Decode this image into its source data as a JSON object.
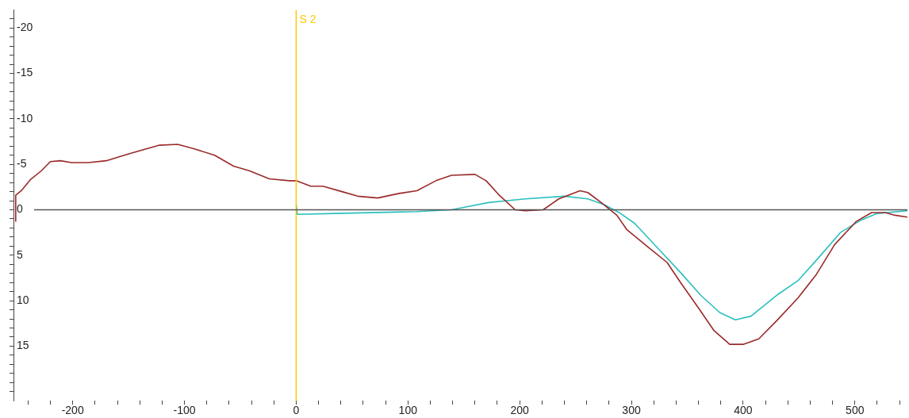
{
  "chart_data": {
    "type": "line",
    "marker": "none",
    "line_style": "solid",
    "grid": false,
    "legend": false,
    "xlim": [
      -253,
      547
    ],
    "ylim": [
      21,
      -22
    ],
    "xticks": [
      -200,
      -100,
      0,
      100,
      200,
      300,
      400,
      500,
      {
        "value": -240,
        "label": null
      },
      {
        "value": -220,
        "label": null
      },
      {
        "value": -180,
        "label": null
      },
      {
        "value": -160,
        "label": null
      },
      {
        "value": -140,
        "label": null
      },
      {
        "value": -120,
        "label": null
      },
      {
        "value": -80,
        "label": null
      },
      {
        "value": -60,
        "label": null
      },
      {
        "value": -40,
        "label": null
      },
      {
        "value": -20,
        "label": null
      },
      {
        "value": 20,
        "label": null
      },
      {
        "value": 40,
        "label": null
      },
      {
        "value": 60,
        "label": null
      },
      {
        "value": 80,
        "label": null
      },
      {
        "value": 120,
        "label": null
      },
      {
        "value": 140,
        "label": null
      },
      {
        "value": 160,
        "label": null
      },
      {
        "value": 180,
        "label": null
      },
      {
        "value": 220,
        "label": null
      },
      {
        "value": 240,
        "label": null
      },
      {
        "value": 260,
        "label": null
      },
      {
        "value": 280,
        "label": null
      },
      {
        "value": 320,
        "label": null
      },
      {
        "value": 340,
        "label": null
      },
      {
        "value": 360,
        "label": null
      },
      {
        "value": 380,
        "label": null
      },
      {
        "value": 420,
        "label": null
      },
      {
        "value": 440,
        "label": null
      },
      {
        "value": 460,
        "label": null
      },
      {
        "value": 480,
        "label": null
      },
      {
        "value": 520,
        "label": null
      },
      {
        "value": 540,
        "label": null
      }
    ],
    "yticks": [
      -20,
      -15,
      -10,
      -5,
      0,
      5,
      10,
      15,
      {
        "value": -21,
        "label": null
      },
      {
        "value": -19,
        "label": null
      },
      {
        "value": -18,
        "label": null
      },
      {
        "value": -17,
        "label": null
      },
      {
        "value": -16,
        "label": null
      },
      {
        "value": -14,
        "label": null
      },
      {
        "value": -13,
        "label": null
      },
      {
        "value": -12,
        "label": null
      },
      {
        "value": -11,
        "label": null
      },
      {
        "value": -9,
        "label": null
      },
      {
        "value": -8,
        "label": null
      },
      {
        "value": -7,
        "label": null
      },
      {
        "value": -6,
        "label": null
      },
      {
        "value": -4,
        "label": null
      },
      {
        "value": -3,
        "label": null
      },
      {
        "value": -2,
        "label": null
      },
      {
        "value": -1,
        "label": null
      },
      {
        "value": 1,
        "label": null
      },
      {
        "value": 2,
        "label": null
      },
      {
        "value": 3,
        "label": null
      },
      {
        "value": 4,
        "label": null
      },
      {
        "value": 6,
        "label": null
      },
      {
        "value": 7,
        "label": null
      },
      {
        "value": 8,
        "label": null
      },
      {
        "value": 9,
        "label": null
      },
      {
        "value": 11,
        "label": null
      },
      {
        "value": 12,
        "label": null
      },
      {
        "value": 13,
        "label": null
      },
      {
        "value": 14,
        "label": null
      },
      {
        "value": 16,
        "label": null
      },
      {
        "value": 17,
        "label": null
      },
      {
        "value": 18,
        "label": null
      },
      {
        "value": 19,
        "label": null
      },
      {
        "value": 20,
        "label": null
      }
    ],
    "ref_lines": [
      {
        "axis": "x",
        "value": 0,
        "label": "S 2",
        "color": "#ffc800"
      },
      {
        "axis": "y",
        "value": 0,
        "color": "#555555"
      }
    ],
    "series": [
      {
        "color": "#9b2a2a",
        "x": [
          -251,
          -251,
          -246,
          -238,
          -228,
          -220,
          -211,
          -201,
          -186,
          -170,
          -154,
          -140,
          -123,
          -106,
          -91,
          -73,
          -56,
          -42,
          -24,
          -6,
          0,
          13,
          24,
          41,
          55,
          73,
          92,
          108,
          125,
          139,
          160,
          170,
          181,
          196,
          205,
          221,
          235,
          254,
          261,
          273,
          287,
          296,
          315,
          332,
          344,
          360,
          374,
          388,
          400,
          414,
          430,
          449,
          465,
          482,
          501,
          515,
          527,
          536,
          547
        ],
        "values": [
          1.3,
          -1.6,
          -2.1,
          -3.3,
          -4.3,
          -5.3,
          -5.4,
          -5.2,
          -5.2,
          -5.4,
          -6.0,
          -6.5,
          -7.1,
          -7.2,
          -6.7,
          -6.0,
          -4.8,
          -4.3,
          -3.4,
          -3.2,
          -3.2,
          -2.6,
          -2.6,
          -2.0,
          -1.5,
          -1.3,
          -1.8,
          -2.1,
          -3.2,
          -3.8,
          -3.9,
          -3.2,
          -1.7,
          0,
          0.1,
          0,
          -1.2,
          -2.1,
          -1.9,
          -0.8,
          0.6,
          2.2,
          4.1,
          5.8,
          8.0,
          10.8,
          13.3,
          14.8,
          14.8,
          14.2,
          12.2,
          9.7,
          7.2,
          3.8,
          1.3,
          0.3,
          0.3,
          0.6,
          0.8
        ]
      },
      {
        "color": "#2bbfbf",
        "x": [
          0,
          1,
          34,
          108,
          139,
          172,
          205,
          240,
          261,
          275,
          289,
          303,
          325,
          344,
          362,
          379,
          393,
          407,
          430,
          449,
          468,
          487,
          506,
          520,
          547
        ],
        "values": [
          -0.6,
          0.5,
          0.4,
          0.2,
          0,
          -0.8,
          -1.2,
          -1.5,
          -1.2,
          -0.6,
          0.3,
          1.5,
          4.4,
          6.9,
          9.4,
          11.3,
          12.1,
          11.7,
          9.4,
          7.8,
          5.2,
          2.5,
          1.1,
          0.4,
          0.1
        ]
      }
    ]
  }
}
